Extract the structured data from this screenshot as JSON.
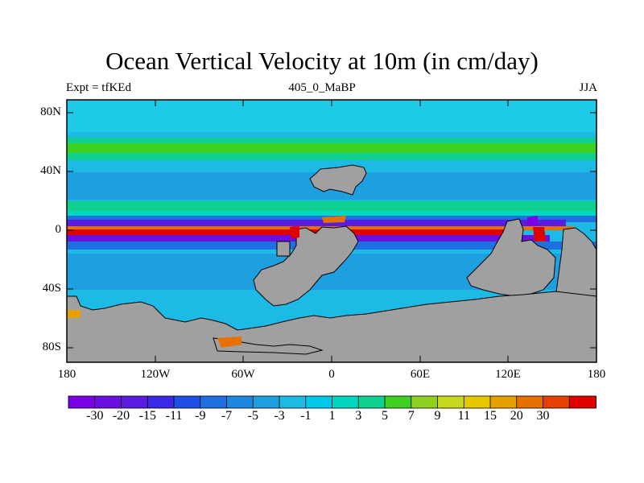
{
  "title": "Ocean Vertical Velocity at 10m (in cm/day)",
  "left_string": "Expt = tfKEd",
  "center_string": "405_0_MaBP",
  "right_string": "JJA",
  "lat_labels": [
    "80N",
    "40N",
    "0",
    "40S",
    "80S"
  ],
  "lon_labels": [
    "180",
    "120W",
    "60W",
    "0",
    "60E",
    "120E",
    "180"
  ],
  "colorbar": {
    "labels": [
      "-30",
      "-20",
      "-15",
      "-11",
      "-9",
      "-7",
      "-5",
      "-3",
      "-1",
      "1",
      "3",
      "5",
      "7",
      "9",
      "11",
      "15",
      "20",
      "30"
    ],
    "colors": [
      "#7a00e6",
      "#6b10e0",
      "#5a1de0",
      "#3a2ae6",
      "#1f50e6",
      "#1e6fe0",
      "#1e88e0",
      "#1ea0e0",
      "#1ebae6",
      "#00c8e6",
      "#00d6c0",
      "#10d090",
      "#40d020",
      "#90d020",
      "#c8d820",
      "#e6c800",
      "#e6a000",
      "#e67000",
      "#e64000",
      "#e00000"
    ]
  },
  "land_color": "#a0a0a0",
  "ocean_base_color": "#1ebae6"
}
